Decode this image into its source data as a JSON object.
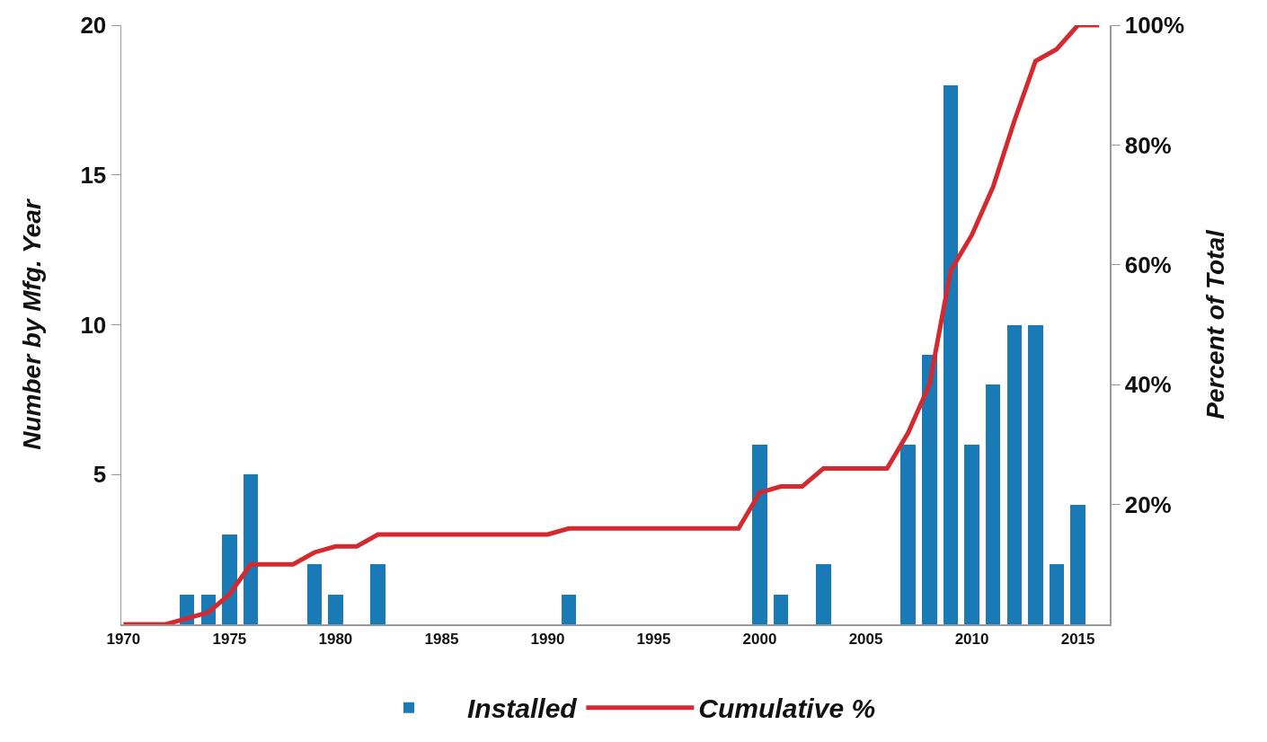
{
  "chart_data": {
    "type": "bar",
    "ylabel": "Number by Mfg. Year",
    "y2label": "Percent of Total",
    "xlim": [
      1969.9,
      2016.5
    ],
    "xticks": [
      1970,
      1975,
      1980,
      1985,
      1990,
      1995,
      2000,
      2005,
      2010,
      2015
    ],
    "ylim": [
      0,
      20
    ],
    "yticks": [
      5,
      10,
      15,
      20
    ],
    "y2lim": [
      0,
      100
    ],
    "y2ticks": [
      {
        "value": 20,
        "label": "20%"
      },
      {
        "value": 40,
        "label": "40%"
      },
      {
        "value": 60,
        "label": "60%"
      },
      {
        "value": 80,
        "label": "80%"
      },
      {
        "value": 100,
        "label": "100%"
      }
    ],
    "grid": false,
    "legend": "bottom",
    "marker": "none",
    "line_style": "solid",
    "series": [
      {
        "name": "Installed",
        "color": "#1a7ab5",
        "x": [
          1973,
          1974,
          1975,
          1976,
          1979,
          1980,
          1982,
          1991,
          2000,
          2001,
          2003,
          2007,
          2008,
          2009,
          2010,
          2011,
          2012,
          2013,
          2014,
          2015
        ],
        "values": [
          1,
          1,
          3,
          5,
          2,
          1,
          2,
          1,
          6,
          1,
          2,
          6,
          9,
          18,
          6,
          8,
          10,
          10,
          2,
          4
        ]
      },
      {
        "name": "Cumulative %",
        "type": "line",
        "axis": "y2",
        "color": "#d42a2f",
        "x": [
          1970,
          1971,
          1972,
          1973,
          1974,
          1975,
          1976,
          1977,
          1978,
          1979,
          1980,
          1981,
          1982,
          1983,
          1984,
          1985,
          1986,
          1987,
          1988,
          1989,
          1990,
          1991,
          1992,
          1993,
          1994,
          1995,
          1996,
          1997,
          1998,
          1999,
          2000,
          2001,
          2002,
          2003,
          2004,
          2005,
          2006,
          2007,
          2008,
          2009,
          2010,
          2011,
          2012,
          2013,
          2014,
          2015,
          2016
        ],
        "values": [
          0,
          0,
          0,
          1,
          2,
          5,
          10,
          10,
          10,
          12,
          13,
          13,
          15,
          15,
          15,
          15,
          15,
          15,
          15,
          15,
          15,
          16,
          16,
          16,
          16,
          16,
          16,
          16,
          16,
          16,
          22,
          23,
          23,
          26,
          26,
          26,
          26,
          32,
          40,
          59,
          65,
          73,
          84,
          94,
          96,
          100,
          100
        ]
      }
    ]
  }
}
